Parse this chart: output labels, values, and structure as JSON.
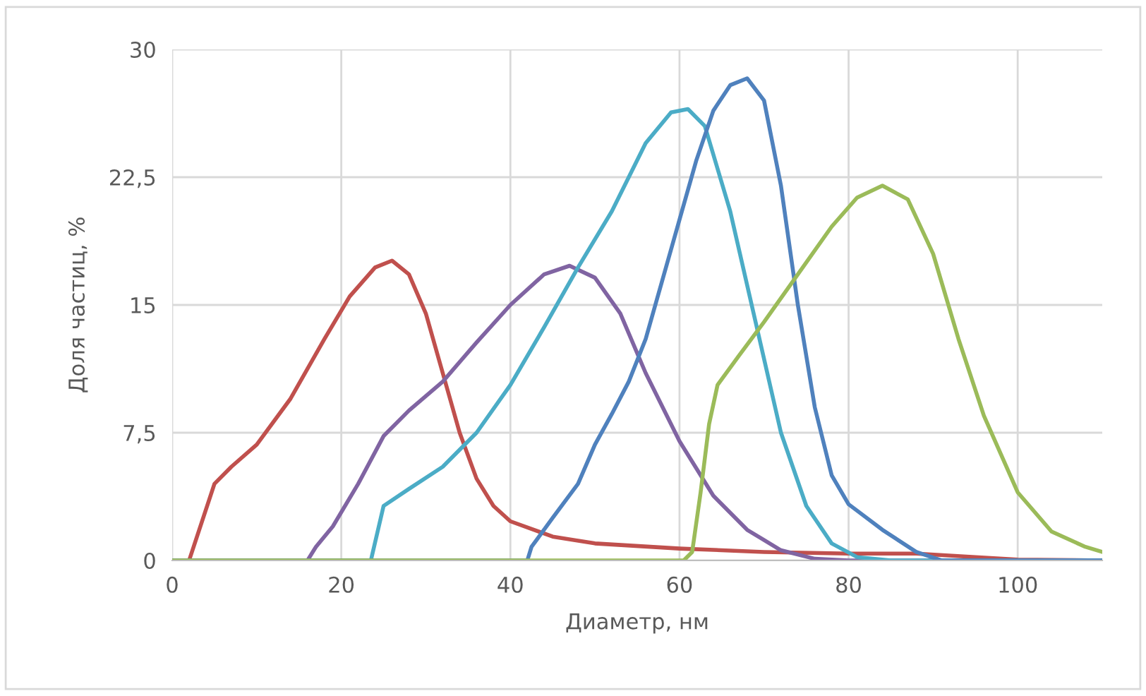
{
  "chart_data": {
    "type": "line",
    "xlabel": "Диаметр, нм",
    "ylabel": "Доля частиц, %",
    "xlim": [
      0,
      110
    ],
    "ylim": [
      0,
      30
    ],
    "xticks": [
      0,
      20,
      40,
      60,
      80,
      100
    ],
    "yticks": [
      0,
      {
        "value": 7.5,
        "label": "7,5"
      },
      15,
      {
        "value": 22.5,
        "label": "22,5"
      },
      30
    ],
    "grid": true,
    "legend": false,
    "marker": "none",
    "line_style": "solid",
    "series": [
      {
        "color": "#c0504d",
        "x": [
          0,
          2,
          5,
          7,
          10,
          14,
          18,
          21,
          24,
          26,
          28,
          30,
          32,
          34,
          36,
          38,
          40,
          45,
          50,
          60,
          70,
          80,
          88,
          95,
          100,
          110
        ],
        "values": [
          0,
          0,
          4.5,
          5.5,
          6.8,
          9.5,
          13,
          15.5,
          17.2,
          17.6,
          16.8,
          14.5,
          11,
          7.5,
          4.8,
          3.2,
          2.3,
          1.4,
          1.0,
          0.7,
          0.5,
          0.4,
          0.4,
          0.2,
          0.05,
          0
        ]
      },
      {
        "color": "#8064a2",
        "x": [
          0,
          16,
          17,
          19,
          22,
          25,
          28,
          32,
          36,
          40,
          44,
          47,
          50,
          53,
          56,
          60,
          64,
          68,
          72,
          76,
          80,
          110
        ],
        "values": [
          0,
          0,
          0.8,
          2,
          4.5,
          7.3,
          8.8,
          10.5,
          12.8,
          15,
          16.8,
          17.3,
          16.6,
          14.5,
          11,
          7,
          3.8,
          1.8,
          0.6,
          0.1,
          0,
          0
        ]
      },
      {
        "color": "#4bacc6",
        "x": [
          0,
          23.5,
          25,
          28,
          32,
          36,
          40,
          44,
          48,
          52,
          56,
          59,
          61,
          63,
          66,
          69,
          72,
          75,
          78,
          81,
          85,
          110
        ],
        "values": [
          0,
          0,
          3.2,
          4.2,
          5.5,
          7.5,
          10.3,
          13.7,
          17.2,
          20.5,
          24.5,
          26.3,
          26.5,
          25.5,
          20.5,
          14,
          7.5,
          3.2,
          1.0,
          0.2,
          0,
          0
        ]
      },
      {
        "color": "#4f81bd",
        "x": [
          0,
          42,
          42.5,
          45,
          48,
          50,
          52,
          54,
          56,
          58,
          60,
          62,
          64,
          66,
          68,
          70,
          72,
          74,
          76,
          78,
          80,
          84,
          88,
          91,
          110
        ],
        "values": [
          0,
          0,
          0.8,
          2.5,
          4.5,
          6.8,
          8.6,
          10.5,
          13,
          16.5,
          20,
          23.5,
          26.4,
          27.9,
          28.3,
          27,
          22,
          15,
          9,
          5,
          3.3,
          1.8,
          0.5,
          0,
          0
        ]
      },
      {
        "color": "#9bbb59",
        "x": [
          0,
          60.5,
          61.5,
          62.5,
          63.5,
          64.5,
          67,
          70,
          74,
          78,
          81,
          84,
          87,
          90,
          93,
          96,
          100,
          104,
          108,
          110
        ],
        "values": [
          0,
          0,
          0.5,
          4,
          8,
          10.3,
          12,
          14,
          16.8,
          19.6,
          21.3,
          22,
          21.2,
          18,
          13,
          8.5,
          4,
          1.7,
          0.8,
          0.5
        ]
      }
    ]
  }
}
